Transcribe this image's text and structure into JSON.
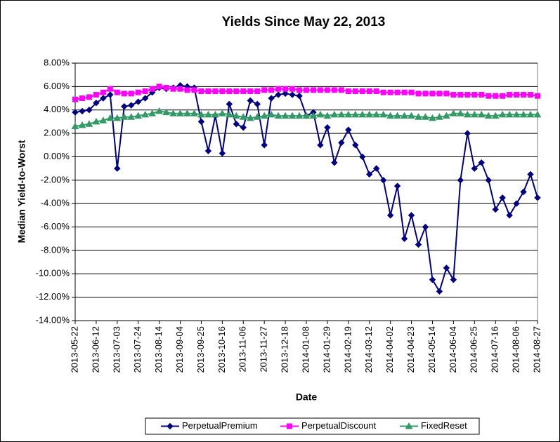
{
  "chart_data": {
    "type": "line",
    "title": "Yields Since May 22, 2013",
    "x_label": "Date",
    "y_label": "Median Yield-to-Worst",
    "categories": [
      "2013-05-22",
      null,
      null,
      "2013-06-12",
      null,
      null,
      "2013-07-03",
      null,
      null,
      "2013-07-24",
      null,
      null,
      "2013-08-14",
      null,
      null,
      "2013-09-04",
      null,
      null,
      "2013-09-25",
      null,
      null,
      "2013-10-16",
      null,
      null,
      "2013-11-06",
      null,
      null,
      "2013-11-27",
      null,
      null,
      "2013-12-18",
      null,
      null,
      "2014-01-08",
      null,
      null,
      "2014-01-29",
      null,
      null,
      "2014-02-19",
      null,
      null,
      "2014-03-12",
      null,
      null,
      "2014-04-02",
      null,
      null,
      "2014-04-23",
      null,
      null,
      "2014-05-14",
      null,
      null,
      "2014-06-04",
      null,
      null,
      "2014-06-25",
      null,
      null,
      "2014-07-16",
      null,
      null,
      "2014-08-06",
      null,
      null,
      "2014-08-27"
    ],
    "series": [
      {
        "name": "PerpetualPremium",
        "color": "#000080",
        "marker": "diamond",
        "values": [
          3.8,
          3.9,
          4.0,
          4.6,
          5.0,
          5.3,
          -1.0,
          4.3,
          4.4,
          4.7,
          5.0,
          5.5,
          5.9,
          5.8,
          5.9,
          6.1,
          6.0,
          5.9,
          3.0,
          0.5,
          3.5,
          0.3,
          4.5,
          2.8,
          2.5,
          4.8,
          4.5,
          1.0,
          5.0,
          5.3,
          5.4,
          5.3,
          5.2,
          3.5,
          3.8,
          1.0,
          2.5,
          -0.5,
          1.2,
          2.3,
          1.0,
          0.0,
          -1.5,
          -1.0,
          -2.0,
          -5.0,
          -2.5,
          -7.0,
          -5.0,
          -7.5,
          -6.0,
          -10.5,
          -11.5,
          -9.5,
          -10.5,
          -2.0,
          2.0,
          -1.0,
          -0.5,
          -2.0,
          -4.5,
          -3.5,
          -5.0,
          -4.0,
          -3.0,
          -1.5,
          -3.5
        ]
      },
      {
        "name": "PerpetualDiscount",
        "color": "#ff00ff",
        "marker": "square",
        "values": [
          4.9,
          5.0,
          5.1,
          5.3,
          5.5,
          5.8,
          5.5,
          5.4,
          5.4,
          5.5,
          5.6,
          5.8,
          6.0,
          5.9,
          5.8,
          5.8,
          5.7,
          5.7,
          5.6,
          5.6,
          5.6,
          5.6,
          5.6,
          5.6,
          5.6,
          5.6,
          5.6,
          5.7,
          5.7,
          5.8,
          5.8,
          5.8,
          5.7,
          5.7,
          5.7,
          5.7,
          5.7,
          5.7,
          5.7,
          5.6,
          5.6,
          5.6,
          5.6,
          5.6,
          5.5,
          5.5,
          5.5,
          5.5,
          5.5,
          5.4,
          5.4,
          5.4,
          5.4,
          5.4,
          5.3,
          5.3,
          5.3,
          5.3,
          5.3,
          5.2,
          5.2,
          5.2,
          5.3,
          5.3,
          5.3,
          5.3,
          5.2
        ]
      },
      {
        "name": "FixedReset",
        "color": "#339966",
        "marker": "triangle",
        "values": [
          2.6,
          2.7,
          2.8,
          3.0,
          3.1,
          3.3,
          3.3,
          3.4,
          3.4,
          3.5,
          3.6,
          3.7,
          3.9,
          3.8,
          3.7,
          3.7,
          3.7,
          3.7,
          3.6,
          3.6,
          3.6,
          3.7,
          3.6,
          3.5,
          3.4,
          3.3,
          3.4,
          3.5,
          3.6,
          3.5,
          3.5,
          3.5,
          3.5,
          3.5,
          3.5,
          3.6,
          3.5,
          3.6,
          3.6,
          3.6,
          3.6,
          3.6,
          3.6,
          3.6,
          3.6,
          3.5,
          3.5,
          3.5,
          3.5,
          3.4,
          3.4,
          3.3,
          3.4,
          3.5,
          3.7,
          3.7,
          3.6,
          3.6,
          3.6,
          3.5,
          3.5,
          3.6,
          3.6,
          3.6,
          3.6,
          3.6,
          3.6
        ]
      }
    ],
    "ylim": [
      -14,
      8
    ],
    "yticks": [
      {
        "value": -14,
        "label": "-14.00%"
      },
      {
        "value": -12,
        "label": "-12.00%"
      },
      {
        "value": -10,
        "label": "-10.00%"
      },
      {
        "value": -8,
        "label": "-8.00%"
      },
      {
        "value": -6,
        "label": "-6.00%"
      },
      {
        "value": -4,
        "label": "-4.00%"
      },
      {
        "value": -2,
        "label": "-2.00%"
      },
      {
        "value": 0,
        "label": "0.00%"
      },
      {
        "value": 2,
        "label": "2.00%"
      },
      {
        "value": 4,
        "label": "4.00%"
      },
      {
        "value": 6,
        "label": "6.00%"
      },
      {
        "value": 8,
        "label": "8.00%"
      }
    ],
    "grid": true,
    "legend": "bottom"
  }
}
